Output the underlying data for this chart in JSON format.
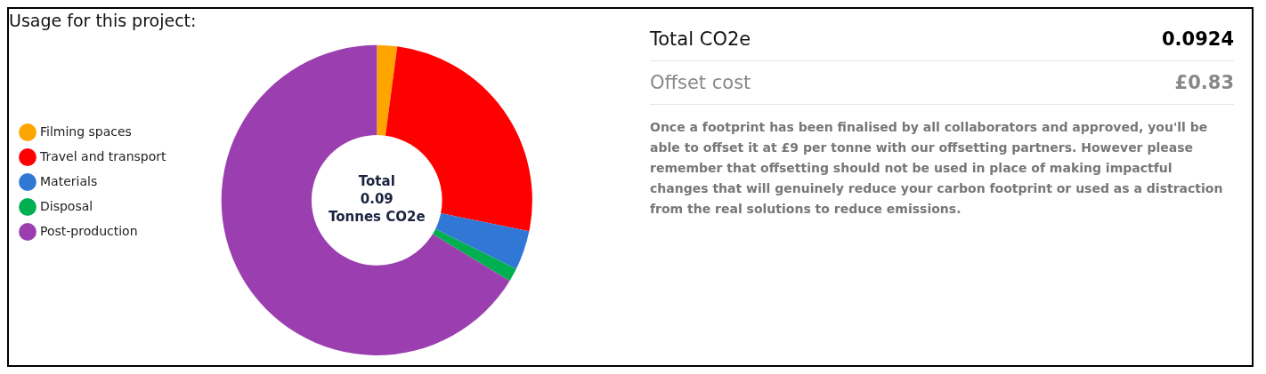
{
  "chart_data": {
    "type": "donut",
    "title": "Usage for this project:",
    "categories": [
      "Filming spaces",
      "Travel and transport",
      "Materials",
      "Disposal",
      "Post-production"
    ],
    "values": [
      2.1,
      26.1,
      4.1,
      1.4,
      66.3
    ],
    "colors": [
      "#ffa500",
      "#ff0000",
      "#3178d6",
      "#00b050",
      "#9b3fb0"
    ],
    "legend": "left",
    "annotations": [
      "Total\n0.09\nTonnes CO2e",
      "Total CO2e",
      "0.0924",
      "Offset cost",
      "£0.83",
      "Once a footprint has been finalised by all collaborators and approved, you'll be able to offset it at £9 per tonne with our offsetting partners. However please remember that offsetting should not be used in place of making impactful changes that will genuinely reduce your carbon footprint or used as a distraction from the real solutions to reduce emissions."
    ]
  }
}
